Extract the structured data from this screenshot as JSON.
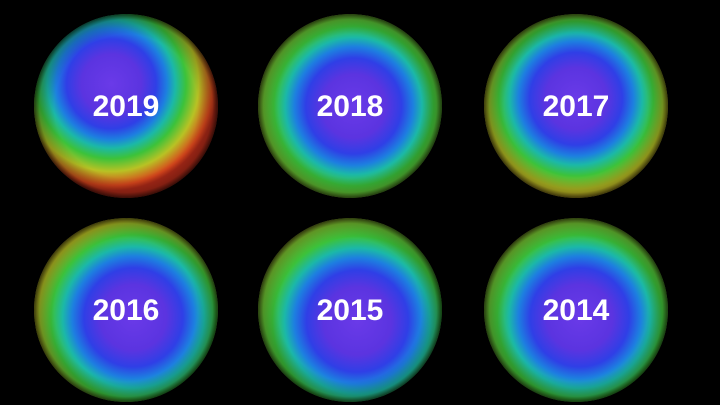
{
  "panels": [
    {
      "year": "2019"
    },
    {
      "year": "2018"
    },
    {
      "year": "2017"
    },
    {
      "year": "2016"
    },
    {
      "year": "2015"
    },
    {
      "year": "2014"
    }
  ]
}
